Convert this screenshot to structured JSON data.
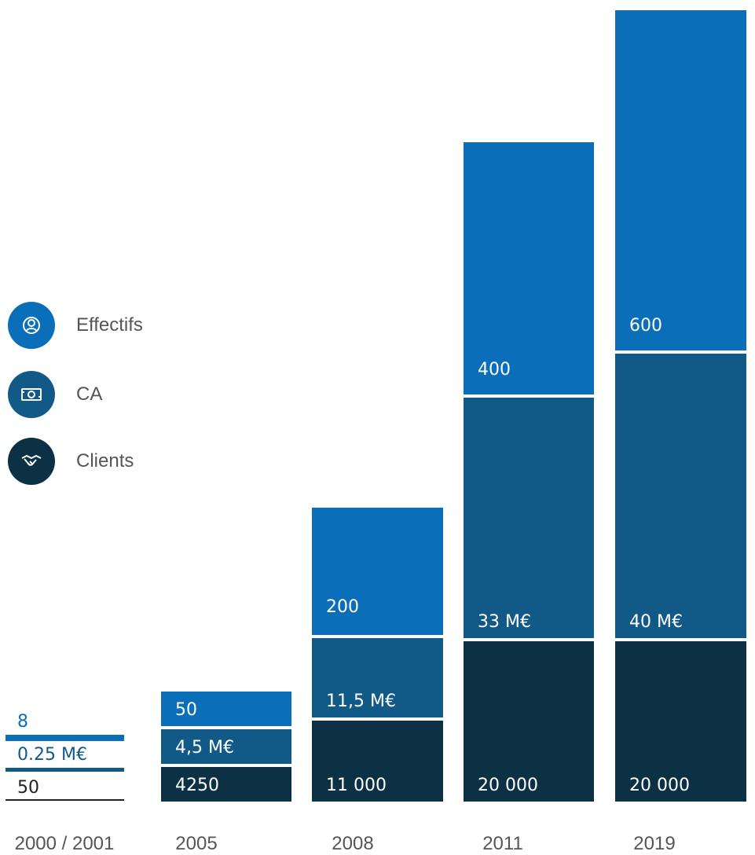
{
  "colors": {
    "effectifs": "#0a6eb8",
    "ca": "#115987",
    "clients": "#0c3044",
    "axis_text": "#555555",
    "legend_text": "#555555"
  },
  "legend": [
    {
      "key": "effectifs",
      "label": "Effectifs",
      "icon": "person-icon"
    },
    {
      "key": "ca",
      "label": "CA",
      "icon": "banknote-icon"
    },
    {
      "key": "clients",
      "label": "Clients",
      "icon": "handshake-icon"
    }
  ],
  "chart_data": {
    "type": "bar",
    "stacked": true,
    "grid": false,
    "legend_placement": "left",
    "categories": [
      "2000 / 2001",
      "2005",
      "2008",
      "2011",
      "2019"
    ],
    "series": [
      {
        "name": "Clients",
        "key": "clients",
        "values": [
          50,
          4250,
          11000,
          20000,
          20000
        ],
        "labels": [
          "50",
          "4250",
          "11 000",
          "20 000",
          "20 000"
        ]
      },
      {
        "name": "CA",
        "key": "ca",
        "values": [
          0.25,
          4.5,
          11.5,
          33,
          40
        ],
        "labels": [
          "0.25 M€",
          "4,5 M€",
          "11,5 M€",
          "33 M€",
          "40 M€"
        ]
      },
      {
        "name": "Effectifs",
        "key": "effectifs",
        "values": [
          8,
          50,
          200,
          400,
          600
        ],
        "labels": [
          "8",
          "50",
          "200",
          "400",
          "600"
        ]
      }
    ]
  }
}
